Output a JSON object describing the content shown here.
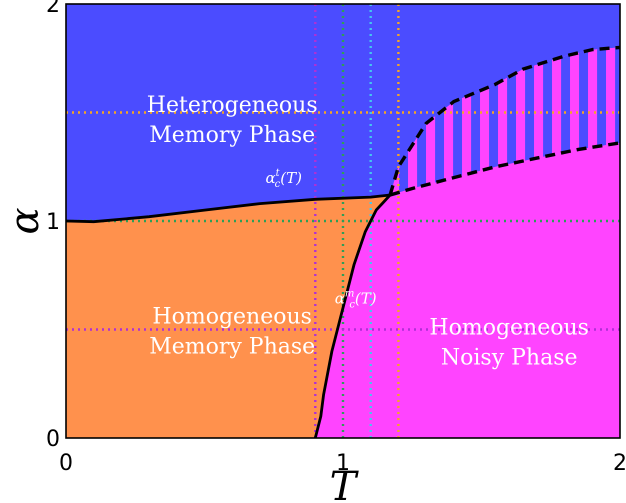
{
  "chart_data": {
    "type": "area",
    "title": "",
    "xlabel": "T",
    "ylabel": "α",
    "xlim": [
      0,
      2
    ],
    "ylim": [
      0,
      2
    ],
    "x_ticks": [
      "0",
      "1",
      "2"
    ],
    "y_ticks": [
      "0",
      "1",
      "2"
    ],
    "colors": {
      "heterogeneous_memory": "#4b4cff",
      "homogeneous_memory": "#ff914d",
      "homogeneous_noisy": "#ff44ff",
      "stripe_alt": "#4b4cff",
      "curve": "#000000",
      "ref_orange": "#f5a623",
      "ref_green": "#2e9e57",
      "ref_cyan": "#44c6f0",
      "ref_purple": "#b02fd6"
    },
    "regions": [
      {
        "name": "Heterogeneous Memory Phase",
        "lines": [
          "Heterogeneous",
          "Memory Phase"
        ],
        "label_at": [
          0.6,
          1.475
        ]
      },
      {
        "name": "Homogeneous Memory Phase",
        "lines": [
          "Homogeneous",
          "Memory Phase"
        ],
        "label_at": [
          0.6,
          0.5
        ]
      },
      {
        "name": "Homogeneous Noisy Phase",
        "lines": [
          "Homogeneous",
          "Noisy Phase"
        ],
        "label_at": [
          1.6,
          0.45
        ]
      }
    ],
    "curves": [
      {
        "name": "alpha_c^t(T)",
        "label_main": "α",
        "label_sub": "c",
        "label_sup": "t",
        "label_arg": "(T)",
        "label_at": [
          0.72,
          1.175
        ],
        "style": "solid",
        "points": [
          [
            0,
            1.0
          ],
          [
            0.1,
            0.997
          ],
          [
            0.3,
            1.02
          ],
          [
            0.5,
            1.05
          ],
          [
            0.7,
            1.08
          ],
          [
            0.9,
            1.1
          ],
          [
            1.1,
            1.11
          ],
          [
            1.17,
            1.12
          ]
        ]
      },
      {
        "name": "alpha_c^m(T)",
        "label_main": "α",
        "label_sub": "c",
        "label_sup": "m",
        "label_arg": "(T)",
        "label_at": [
          0.97,
          0.62
        ],
        "style": "solid",
        "points": [
          [
            0.9,
            0.0
          ],
          [
            0.92,
            0.1
          ],
          [
            0.93,
            0.2
          ],
          [
            0.96,
            0.4
          ],
          [
            1.0,
            0.6
          ],
          [
            1.04,
            0.8
          ],
          [
            1.08,
            0.95
          ],
          [
            1.12,
            1.05
          ],
          [
            1.17,
            1.12
          ]
        ]
      },
      {
        "name": "upper dashed boundary",
        "style": "dashed",
        "points": [
          [
            1.17,
            1.12
          ],
          [
            1.2,
            1.25
          ],
          [
            1.25,
            1.35
          ],
          [
            1.3,
            1.45
          ],
          [
            1.4,
            1.55
          ],
          [
            1.55,
            1.63
          ],
          [
            1.65,
            1.7
          ],
          [
            1.8,
            1.76
          ],
          [
            1.9,
            1.79
          ],
          [
            2.0,
            1.8
          ]
        ]
      },
      {
        "name": "lower dashed boundary",
        "style": "dashed",
        "points": [
          [
            1.17,
            1.12
          ],
          [
            1.25,
            1.15
          ],
          [
            1.4,
            1.2
          ],
          [
            1.55,
            1.25
          ],
          [
            1.7,
            1.29
          ],
          [
            1.85,
            1.33
          ],
          [
            2.0,
            1.36
          ]
        ]
      }
    ],
    "reference_lines": [
      {
        "orientation": "vertical",
        "value": 0.9,
        "color": "ref_purple"
      },
      {
        "orientation": "vertical",
        "value": 1.0,
        "color": "ref_green"
      },
      {
        "orientation": "vertical",
        "value": 1.1,
        "color": "ref_cyan"
      },
      {
        "orientation": "vertical",
        "value": 1.2,
        "color": "ref_orange"
      },
      {
        "orientation": "horizontal",
        "value": 1.5,
        "color": "ref_orange"
      },
      {
        "orientation": "horizontal",
        "value": 1.0,
        "color": "ref_green"
      },
      {
        "orientation": "horizontal",
        "value": 0.5,
        "color": "ref_purple"
      }
    ],
    "grid": false,
    "legend": "none"
  }
}
